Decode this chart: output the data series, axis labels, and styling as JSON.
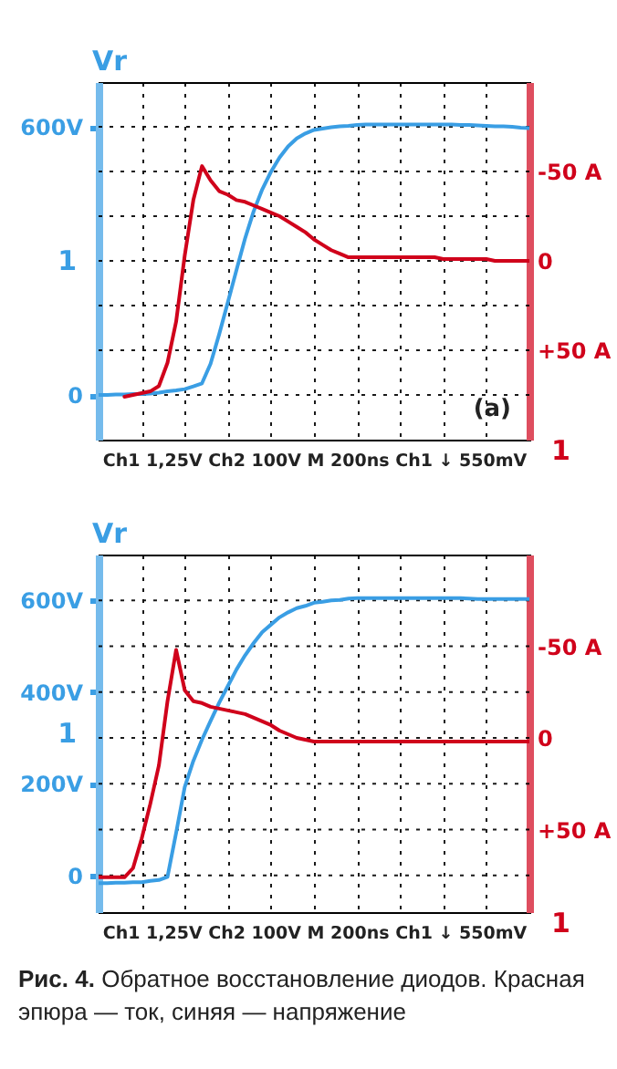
{
  "chart_data": [
    {
      "type": "line",
      "ylabel": "Vr",
      "xlabel": "Ch1 1,25V Ch2 100V M 200ns Ch1 ↓ 550mV",
      "annotations": [
        "(a)",
        "1",
        "1"
      ],
      "categories": [
        null,
        null,
        null,
        null,
        null,
        null,
        null,
        null,
        null,
        null,
        null,
        null,
        null,
        null,
        null,
        null,
        null,
        null,
        null,
        null,
        null,
        null,
        null,
        null,
        null,
        null,
        null,
        null,
        null,
        null,
        null,
        null,
        null,
        null,
        null,
        null,
        null,
        null,
        null,
        null,
        null,
        null,
        null,
        null,
        null,
        null,
        null,
        null,
        null,
        null,
        null
      ],
      "tick_labels": "y",
      "grid": true,
      "ylim": [
        -100,
        700
      ],
      "yticks": [
        {
          "value": 0,
          "label": "0"
        },
        {
          "value": 100,
          "label": null
        },
        {
          "value": 200,
          "label": null
        },
        {
          "value": 300,
          "label": null
        },
        {
          "value": 400,
          "label": null
        },
        {
          "value": 500,
          "label": null
        },
        {
          "value": 600,
          "label": "600V"
        }
      ],
      "y2lim": [
        100,
        -100
      ],
      "y2ticks": [
        {
          "value": -50,
          "label": "-50 A"
        },
        {
          "value": 0,
          "label": "0"
        },
        {
          "value": 50,
          "label": "+50 A"
        }
      ],
      "series": [
        {
          "color": "#3a9ee4",
          "values": [
            0,
            0,
            1,
            1,
            2,
            2,
            3,
            5,
            8,
            10,
            13,
            19,
            26,
            70,
            136,
            207,
            279,
            350,
            411,
            460,
            499,
            531,
            556,
            574,
            585,
            593,
            596,
            599,
            601,
            602,
            604,
            605,
            605,
            605,
            605,
            605,
            605,
            605,
            605,
            605,
            605,
            605,
            604,
            604,
            603,
            602,
            601,
            601,
            600,
            598,
            597
          ]
        },
        {
          "color": "#d0021b",
          "axis": "y2",
          "values": [
            null,
            null,
            null,
            76,
            75,
            74,
            73,
            70,
            57,
            34,
            -3,
            -34,
            -53,
            -45,
            -39,
            -37,
            -34,
            -33,
            -31,
            -29,
            -27,
            -25,
            -22,
            -19,
            -16,
            -12,
            -9,
            -6,
            -4,
            -2,
            -2,
            -2,
            -2,
            -2,
            -2,
            -2,
            -2,
            -2,
            -2,
            -2,
            -1,
            -1,
            -1,
            -1,
            -1,
            -1,
            0,
            0,
            0,
            0,
            0
          ]
        }
      ]
    },
    {
      "type": "line",
      "ylabel": "Vr",
      "xlabel": "Ch1 1,25V Ch2 100V M 200ns Ch1 ↓ 550mV",
      "annotations": [
        "1",
        "1"
      ],
      "categories": [
        null,
        null,
        null,
        null,
        null,
        null,
        null,
        null,
        null,
        null,
        null,
        null,
        null,
        null,
        null,
        null,
        null,
        null,
        null,
        null,
        null,
        null,
        null,
        null,
        null,
        null,
        null,
        null,
        null,
        null,
        null,
        null,
        null,
        null,
        null,
        null,
        null,
        null,
        null,
        null,
        null,
        null,
        null,
        null,
        null,
        null,
        null,
        null,
        null,
        null,
        null
      ],
      "tick_labels": "y",
      "grid": true,
      "ylim": [
        -80,
        700
      ],
      "yticks": [
        {
          "value": 0,
          "label": "0"
        },
        {
          "value": 100,
          "label": null
        },
        {
          "value": 200,
          "label": "200V"
        },
        {
          "value": 300,
          "label": null
        },
        {
          "value": 400,
          "label": "400V"
        },
        {
          "value": 500,
          "label": null
        },
        {
          "value": 600,
          "label": "600V"
        }
      ],
      "y2lim": [
        95,
        -100
      ],
      "y2ticks": [
        {
          "value": -50,
          "label": "-50 A"
        },
        {
          "value": 0,
          "label": "0"
        },
        {
          "value": 50,
          "label": "+50 A"
        }
      ],
      "series": [
        {
          "color": "#3a9ee4",
          "values": [
            -17,
            -17,
            -16,
            -16,
            -15,
            -15,
            -12,
            -10,
            -3,
            93,
            193,
            250,
            296,
            337,
            377,
            413,
            449,
            480,
            507,
            531,
            547,
            563,
            574,
            583,
            588,
            595,
            597,
            600,
            601,
            604,
            605,
            605,
            605,
            605,
            605,
            605,
            605,
            605,
            605,
            605,
            605,
            605,
            605,
            604,
            603,
            603,
            603,
            603,
            603,
            603,
            603
          ]
        },
        {
          "color": "#d0021b",
          "axis": "y2",
          "values": [
            76,
            76,
            76,
            76,
            71,
            55,
            36,
            15,
            -20,
            -48,
            -26,
            -20,
            -19,
            -17,
            -16,
            -15,
            -14,
            -13,
            -11,
            -9,
            -7,
            -4,
            -2,
            0,
            1,
            2,
            2,
            2,
            2,
            2,
            2,
            2,
            2,
            2,
            2,
            2,
            2,
            2,
            2,
            2,
            2,
            2,
            2,
            2,
            2,
            2,
            2,
            2,
            2,
            2,
            2
          ]
        }
      ]
    },
    {
      "type": "other",
      "annotations": [
        "Рис. 4. Обратное восстановление диодов. Красная эпюра — ток, синяя — напряжение"
      ]
    }
  ]
}
